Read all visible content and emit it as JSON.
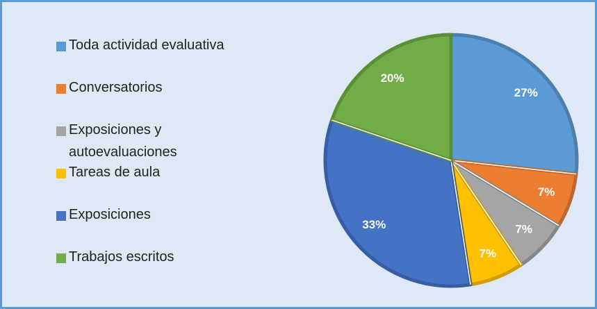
{
  "chart_data": {
    "type": "pie",
    "categories": [
      "Toda actividad evaluativa",
      "Conversatorios",
      "Exposiciones y autoevaluaciones",
      "Tareas de aula",
      "Exposiciones",
      "Trabajos escritos"
    ],
    "values": [
      27,
      7,
      7,
      7,
      33,
      20
    ],
    "value_labels": [
      "27%",
      "7%",
      "7%",
      "7%",
      "33%",
      "20%"
    ],
    "colors": [
      "#5b9bd5",
      "#ed7d31",
      "#a5a5a5",
      "#ffc000",
      "#4472c4",
      "#70ad47"
    ],
    "legend": "left"
  }
}
